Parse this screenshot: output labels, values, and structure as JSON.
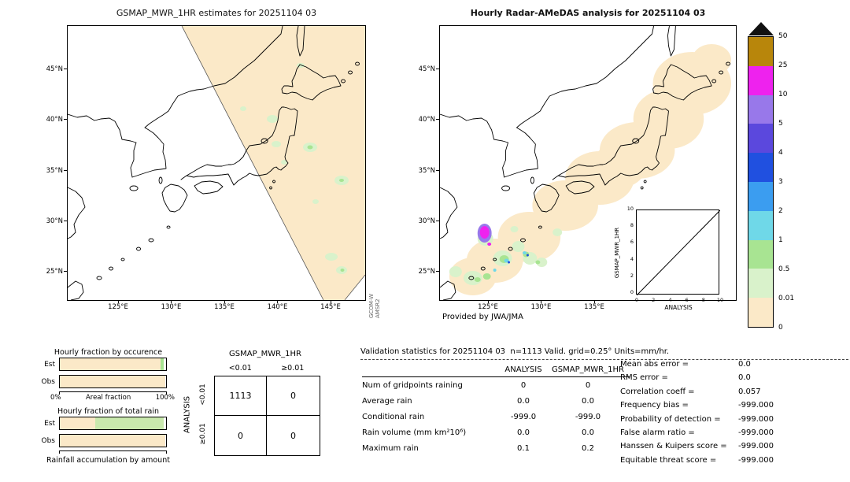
{
  "left_map": {
    "title": "GSMAP_MWR_1HR estimates for 20251104 03",
    "lat_labels": [
      "45°N",
      "40°N",
      "35°N",
      "30°N",
      "25°N"
    ],
    "lon_labels": [
      "125°E",
      "130°E",
      "135°E",
      "140°E",
      "145°E"
    ],
    "watermark_line1": "GCOM-W",
    "watermark_line2": "AMSR2"
  },
  "right_map": {
    "title": "Hourly Radar-AMeDAS analysis for 20251104 03",
    "lat_labels": [
      "45°N",
      "40°N",
      "35°N",
      "30°N",
      "25°N"
    ],
    "lon_labels": [
      "125°E",
      "130°E",
      "135°E"
    ],
    "credit": "Provided by JWA/JMA",
    "inset": {
      "ylabel": "GSMAP_MWR_1HR",
      "xlabel": "ANALYSIS",
      "xticks": [
        "0",
        "2",
        "4",
        "6",
        "8",
        "10"
      ],
      "yticks": [
        "0",
        "2",
        "4",
        "6",
        "8",
        "10"
      ]
    }
  },
  "colorbar": {
    "tick_labels": [
      "50",
      "25",
      "10",
      "5",
      "4",
      "3",
      "2",
      "1",
      "0.5",
      "0.01",
      "0"
    ],
    "segment_colors_top_to_bottom": [
      "#b8860b",
      "#ee22ee",
      "#9878ea",
      "#5b48dd",
      "#2050e0",
      "#3b9df0",
      "#6fd8e8",
      "#a8e492",
      "#d9f2cb",
      "#fbe9c8"
    ],
    "overflow_color": "#111111",
    "units": "mm/hr"
  },
  "bar_charts": [
    {
      "title": "Hourly fraction by occurence",
      "rows": [
        {
          "label": "Est",
          "segments": [
            {
              "color": "#fbe9c8",
              "pct": 95
            },
            {
              "color": "#a8e492",
              "pct": 2.5
            }
          ]
        },
        {
          "label": "Obs",
          "segments": [
            {
              "color": "#fbe9c8",
              "pct": 99
            }
          ]
        }
      ],
      "axis": {
        "left": "0%",
        "center": "Areal fraction",
        "right": "100%"
      }
    },
    {
      "title": "Hourly fraction of total rain",
      "rows": [
        {
          "label": "Est",
          "segments": [
            {
              "color": "#fbe9c8",
              "pct": 33
            },
            {
              "color": "#c9e9ad",
              "pct": 65
            }
          ]
        },
        {
          "label": "Obs",
          "segments": [
            {
              "color": "#fbe9c8",
              "pct": 99
            }
          ]
        }
      ],
      "caption": "Rainfall accumulation by amount"
    }
  ],
  "contingency": {
    "title": "GSMAP_MWR_1HR",
    "col_headers": [
      "<0.01",
      "≥0.01"
    ],
    "row_headers": [
      "<0.01",
      "≥0.01"
    ],
    "side_label": "ANALYSIS",
    "cells": [
      [
        "1113",
        "0"
      ],
      [
        "0",
        "0"
      ]
    ]
  },
  "stats": {
    "header": "Validation statistics for 20251104 03  n=1113 Valid. grid=0.25° Units=mm/hr.",
    "table": {
      "col1": "ANALYSIS",
      "col2": "GSMAP_MWR_1HR",
      "rows": [
        {
          "label": "Num of gridpoints raining",
          "a": "0",
          "g": "0"
        },
        {
          "label": "Average rain",
          "a": "0.0",
          "g": "0.0"
        },
        {
          "label": "Conditional rain",
          "a": "-999.0",
          "g": "-999.0"
        },
        {
          "label": "Rain volume (mm km²10⁶)",
          "a": "0.0",
          "g": "0.0"
        },
        {
          "label": "Maximum rain",
          "a": "0.1",
          "g": "0.2"
        }
      ]
    },
    "metrics": [
      {
        "label": "Mean abs error =",
        "value": "0.0"
      },
      {
        "label": "RMS error =",
        "value": "0.0"
      },
      {
        "label": "Correlation coeff =",
        "value": "0.057"
      },
      {
        "label": "Frequency bias =",
        "value": "-999.000"
      },
      {
        "label": "Probability of detection =",
        "value": "-999.000"
      },
      {
        "label": "False alarm ratio =",
        "value": "-999.000"
      },
      {
        "label": "Hanssen & Kuipers score =",
        "value": "-999.000"
      },
      {
        "label": "Equitable threat score =",
        "value": "-999.000"
      }
    ]
  },
  "chart_data": [
    {
      "type": "bar",
      "title": "Hourly fraction by occurence",
      "orientation": "horizontal",
      "categories": [
        "Est",
        "Obs"
      ],
      "series": [
        {
          "name": "lowest-class areal fraction (%)",
          "values": [
            95,
            99
          ]
        },
        {
          "name": "light-rain-class areal fraction (%)",
          "values": [
            2.5,
            0
          ]
        }
      ],
      "xlabel": "Areal fraction",
      "xlim": [
        0,
        100
      ]
    },
    {
      "type": "bar",
      "title": "Hourly fraction of total rain",
      "orientation": "horizontal",
      "categories": [
        "Est",
        "Obs"
      ],
      "series": [
        {
          "name": "lowest-class fraction (%)",
          "values": [
            33,
            99
          ]
        },
        {
          "name": "light-rain-class fraction (%)",
          "values": [
            65,
            0
          ]
        }
      ],
      "xlabel": "Rainfall accumulation by amount",
      "xlim": [
        0,
        100
      ]
    },
    {
      "type": "table",
      "title": "Contingency table (ANALYSIS rows × GSMAP_MWR_1HR columns), n=1113",
      "columns": [
        "<0.01",
        "≥0.01"
      ],
      "rows": [
        "<0.01",
        "≥0.01"
      ],
      "values": [
        [
          1113,
          0
        ],
        [
          0,
          0
        ]
      ]
    },
    {
      "type": "scatter",
      "title": "GSMAP_MWR_1HR vs ANALYSIS inset",
      "xlabel": "ANALYSIS",
      "ylabel": "GSMAP_MWR_1HR",
      "xlim": [
        0,
        10
      ],
      "ylim": [
        0,
        10
      ],
      "points": [],
      "annotations": [
        "1:1 diagonal reference line"
      ]
    }
  ]
}
